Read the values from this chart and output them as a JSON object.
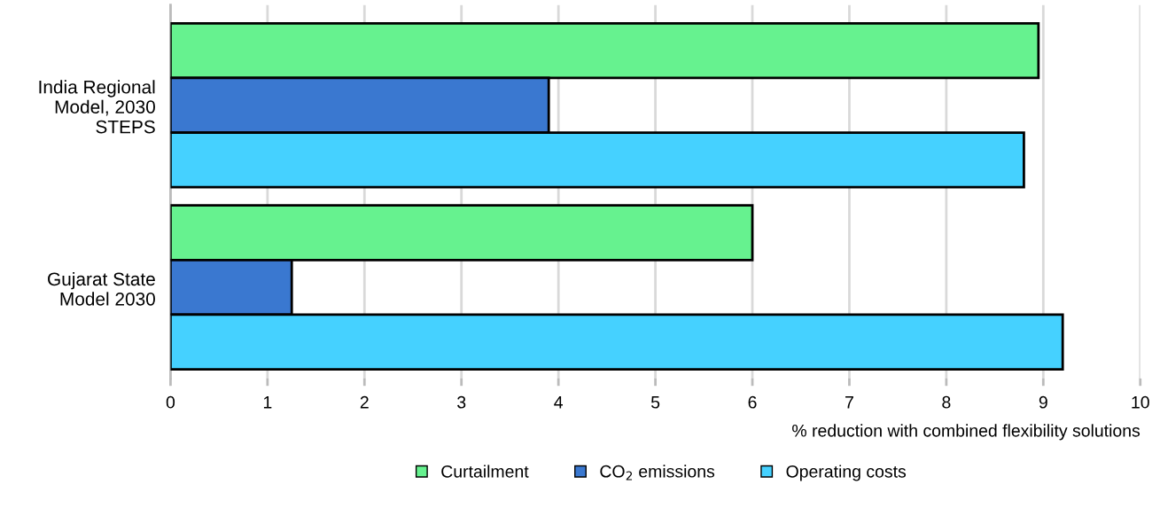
{
  "chart_data": {
    "type": "bar",
    "orientation": "horizontal",
    "xlabel": "% reduction with combined flexibility solutions",
    "categories": [
      "India Regional\nModel, 2030\nSTEPS",
      "Gujarat State\nModel 2030"
    ],
    "series": [
      {
        "name": "Curtailment",
        "color": "#66f28f",
        "values": [
          8.95,
          6.0
        ]
      },
      {
        "name": "CO$_{2}$ emissions",
        "color": "#3a78d0",
        "values": [
          3.9,
          1.25
        ]
      },
      {
        "name": "Operating costs",
        "color": "#45d1ff",
        "values": [
          8.8,
          9.2
        ]
      }
    ],
    "xlim": [
      0,
      10
    ],
    "xticks": [
      0,
      1,
      2,
      3,
      4,
      5,
      6,
      7,
      8,
      9,
      10
    ],
    "grid": "x",
    "legend": "bottom"
  }
}
